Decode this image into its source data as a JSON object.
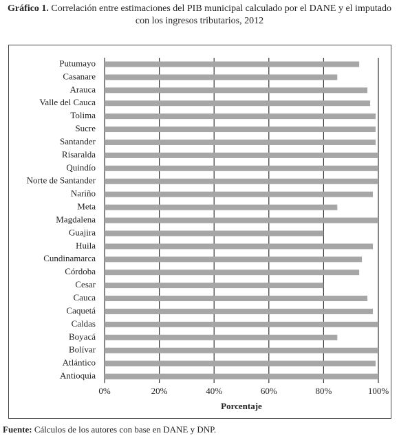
{
  "chart_data": {
    "type": "hbar",
    "title_label": "Gráfico 1.",
    "title": "Correlación entre estimaciones del PIB municipal calculado por el DANE y el imputado con los ingresos tributarios, 2012",
    "xlabel": "Porcentaje",
    "source_label": "Fuente:",
    "source": "Cálculos de los autores con base en DANE y DNP.",
    "categories": [
      "Putumayo",
      "Casanare",
      "Arauca",
      "Valle del Cauca",
      "Tolima",
      "Sucre",
      "Santander",
      "Risaralda",
      "Quindío",
      "Norte de Santander",
      "Nariño",
      "Meta",
      "Magdalena",
      "Guajira",
      "Huila",
      "Cundinamarca",
      "Córdoba",
      "Cesar",
      "Cauca",
      "Caquetá",
      "Caldas",
      "Boyacá",
      "Bolívar",
      "Atlántico",
      "Antioquia"
    ],
    "values": [
      93,
      85,
      96,
      97,
      99,
      99,
      99,
      100,
      100,
      100,
      98,
      85,
      100,
      80,
      98,
      94,
      93,
      80,
      96,
      98,
      100,
      85,
      100,
      99,
      100
    ],
    "color": "#a6a6a6",
    "xlim": [
      0,
      100
    ],
    "xticks": [
      {
        "value": 0,
        "label": "0%"
      },
      {
        "value": 20,
        "label": "20%"
      },
      {
        "value": 40,
        "label": "40%"
      },
      {
        "value": 60,
        "label": "60%"
      },
      {
        "value": 80,
        "label": "80%"
      },
      {
        "value": 100,
        "label": "100%"
      }
    ],
    "grid": true
  }
}
